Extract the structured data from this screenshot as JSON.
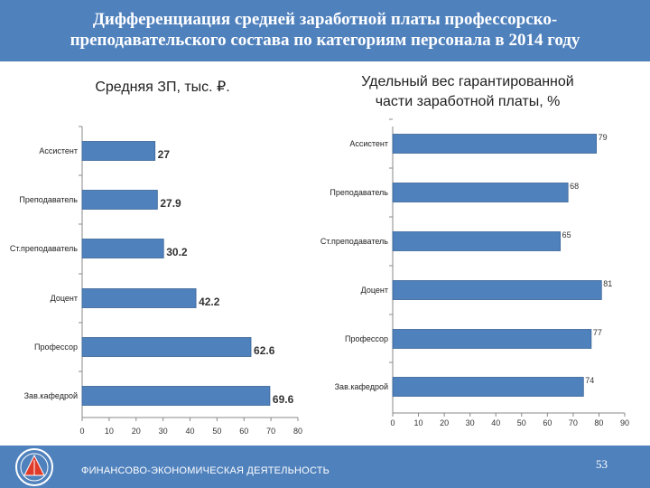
{
  "header": {
    "line1": "Дифференциация средней заработной платы профессорско-",
    "line2": "преподавательского состава по категориям персонала в 2014 году"
  },
  "footer": {
    "text": "ФИНАНСОВО-ЭКОНОМИЧЕСКАЯ ДЕЯТЕЛЬНОСТЬ",
    "page_number": "53"
  },
  "colors": {
    "bar": "#4f81bd",
    "bar_outline": "#3a6496",
    "header": "#4f81bd"
  },
  "chart_data": [
    {
      "type": "bar",
      "orientation": "horizontal",
      "title": "Средняя ЗП, тыс. ₽.",
      "categories": [
        "Ассистент",
        "Преподаватель",
        "Ст.преподаватель",
        "Доцент",
        "Профессор",
        "Зав.кафедрой"
      ],
      "values": [
        27,
        27.9,
        30.2,
        42.2,
        62.6,
        69.6
      ],
      "data_labels": [
        "27",
        "27.9",
        "30.2",
        "42.2",
        "62.6",
        "69.6"
      ],
      "xlim": [
        0,
        80
      ],
      "ticks": [
        "0",
        "10",
        "20",
        "30",
        "40",
        "50",
        "60",
        "70",
        "80"
      ],
      "grid": false,
      "legend": "none"
    },
    {
      "type": "bar",
      "orientation": "horizontal",
      "title": "Удельный вес гарантированной части заработной платы, %",
      "categories": [
        "Ассистент",
        "Преподаватель",
        "Ст.преподаватель",
        "Доцент",
        "Профессор",
        "Зав.кафедрой"
      ],
      "values": [
        79,
        68,
        65,
        81,
        77,
        74
      ],
      "data_labels": [
        "79",
        "68",
        "65",
        "81",
        "77",
        "74"
      ],
      "xlim": [
        0,
        90
      ],
      "ticks": [
        "0",
        "10",
        "20",
        "30",
        "40",
        "50",
        "60",
        "70",
        "80",
        "90"
      ],
      "grid": false,
      "legend": "none"
    }
  ]
}
